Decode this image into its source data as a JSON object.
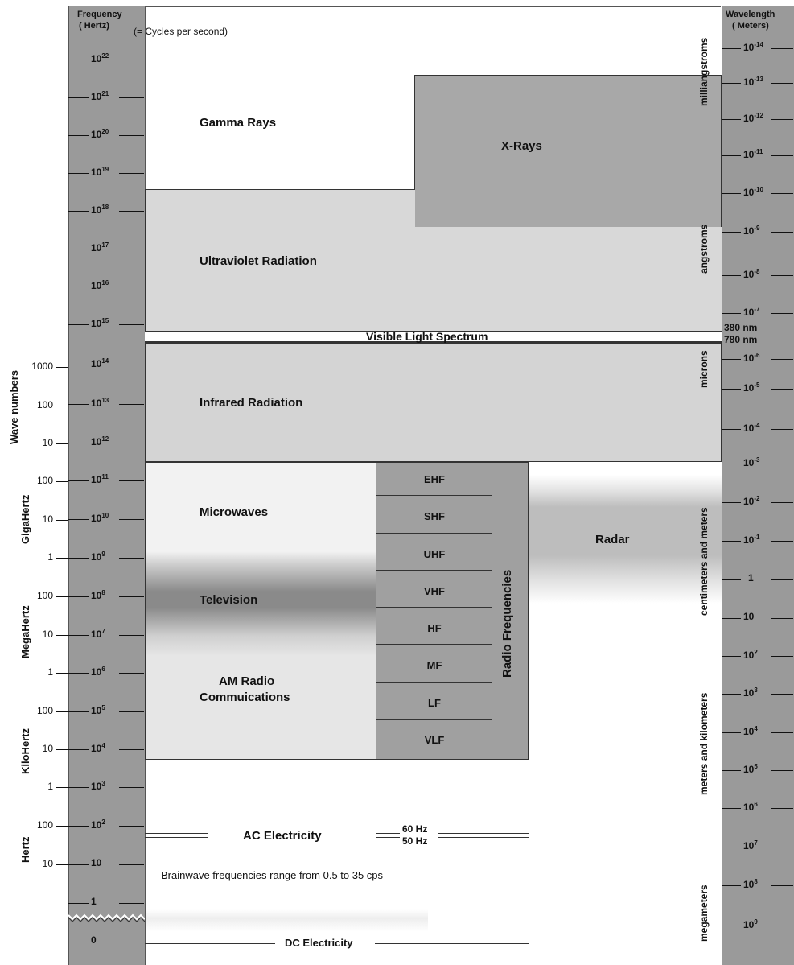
{
  "headers": {
    "frequency": "Frequency",
    "frequency_unit": "( Hertz)",
    "frequency_note": "(= Cycles per second)",
    "wavelength": "Wavelength",
    "wavelength_unit": "( Meters)"
  },
  "frequency_ticks": [
    {
      "base": "10",
      "exp": "22"
    },
    {
      "base": "10",
      "exp": "21"
    },
    {
      "base": "10",
      "exp": "20"
    },
    {
      "base": "10",
      "exp": "19"
    },
    {
      "base": "10",
      "exp": "18"
    },
    {
      "base": "10",
      "exp": "17"
    },
    {
      "base": "10",
      "exp": "16"
    },
    {
      "base": "10",
      "exp": "15"
    },
    {
      "base": "10",
      "exp": "14"
    },
    {
      "base": "10",
      "exp": "13"
    },
    {
      "base": "10",
      "exp": "12"
    },
    {
      "base": "10",
      "exp": "11"
    },
    {
      "base": "10",
      "exp": "10"
    },
    {
      "base": "10",
      "exp": "9"
    },
    {
      "base": "10",
      "exp": "8"
    },
    {
      "base": "10",
      "exp": "7"
    },
    {
      "base": "10",
      "exp": "6"
    },
    {
      "base": "10",
      "exp": "5"
    },
    {
      "base": "10",
      "exp": "4"
    },
    {
      "base": "10",
      "exp": "3"
    },
    {
      "base": "10",
      "exp": "2"
    },
    {
      "base": "10",
      "exp": ""
    },
    {
      "base": "1",
      "exp": ""
    },
    {
      "base": "0",
      "exp": ""
    }
  ],
  "wavelength_ticks": [
    {
      "base": "10",
      "exp": "-14"
    },
    {
      "base": "10",
      "exp": "-13"
    },
    {
      "base": "10",
      "exp": "-12"
    },
    {
      "base": "10",
      "exp": "-11"
    },
    {
      "base": "10",
      "exp": "-10"
    },
    {
      "base": "10",
      "exp": "-9"
    },
    {
      "base": "10",
      "exp": "-8"
    },
    {
      "base": "10",
      "exp": "-7"
    },
    {
      "base": "10",
      "exp": "-6"
    },
    {
      "base": "10",
      "exp": "-5"
    },
    {
      "base": "10",
      "exp": "-4"
    },
    {
      "base": "10",
      "exp": "-3"
    },
    {
      "base": "10",
      "exp": "-2"
    },
    {
      "base": "10",
      "exp": "-1"
    },
    {
      "base": "1",
      "exp": ""
    },
    {
      "base": "10",
      "exp": ""
    },
    {
      "base": "10",
      "exp": "2"
    },
    {
      "base": "10",
      "exp": "3"
    },
    {
      "base": "10",
      "exp": "4"
    },
    {
      "base": "10",
      "exp": "5"
    },
    {
      "base": "10",
      "exp": "6"
    },
    {
      "base": "10",
      "exp": "7"
    },
    {
      "base": "10",
      "exp": "8"
    },
    {
      "base": "10",
      "exp": "9"
    }
  ],
  "visible_markers": {
    "nm380": "380 nm",
    "nm780": "780 nm"
  },
  "left_scale": {
    "wave_numbers_label": "Wave numbers",
    "wave_numbers_values": [
      "1000",
      "100",
      "10"
    ],
    "groups": [
      {
        "label": "GigaHertz",
        "values": [
          "100",
          "10",
          "1"
        ]
      },
      {
        "label": "MegaHertz",
        "values": [
          "100",
          "10",
          "1"
        ]
      },
      {
        "label": "KiloHertz",
        "values": [
          "100",
          "10",
          "1"
        ]
      },
      {
        "label": "Hertz",
        "values": [
          "100",
          "10"
        ]
      }
    ]
  },
  "right_scale_labels": [
    "milliangstroms",
    "angstroms",
    "microns",
    "centimeters and meters",
    "meters and kilometers",
    "megameters"
  ],
  "bands": {
    "gamma": "Gamma Rays",
    "xray": "X-Rays",
    "uv": "Ultraviolet Radiation",
    "visible": "Visible Light Spectrum",
    "infrared": "Infrared Radiation",
    "microwaves": "Microwaves",
    "television": "Television",
    "am_radio_line1": "AM Radio",
    "am_radio_line2": "Commuications",
    "radar": "Radar",
    "radio_frequencies": "Radio Frequencies",
    "ac_electricity": "AC Electricity",
    "hz60": "60 Hz",
    "hz50": "50 Hz",
    "brainwave": "Brainwave frequencies range from 0.5 to 35 cps",
    "dc_electricity": "DC Electricity"
  },
  "radio_cells": [
    "EHF",
    "SHF",
    "UHF",
    "VHF",
    "HF",
    "MF",
    "LF",
    "VLF"
  ]
}
